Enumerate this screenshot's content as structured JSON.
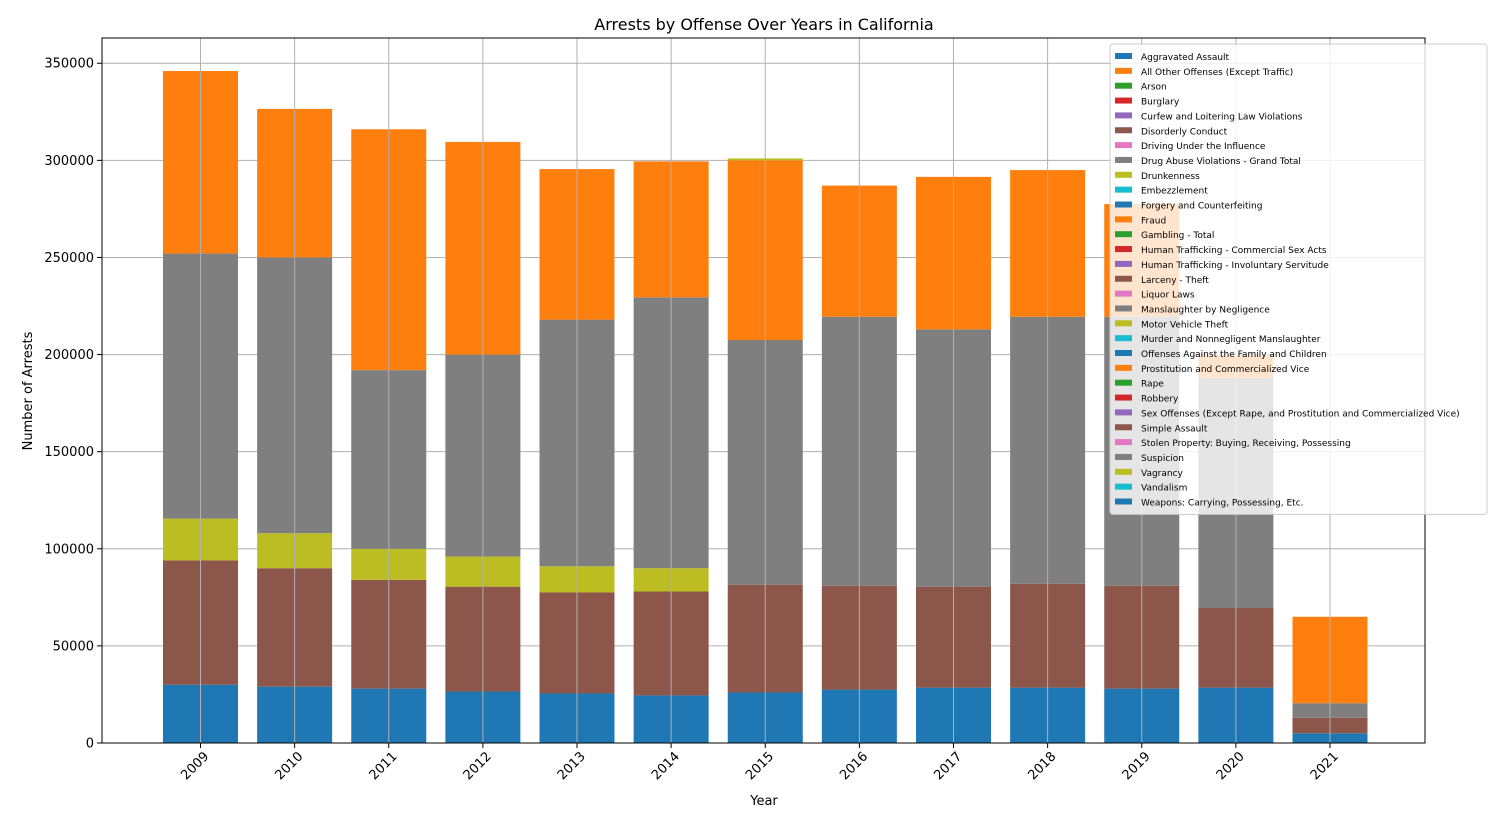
{
  "chart_data": {
    "type": "bar",
    "stacked": true,
    "title": "Arrests by Offense Over Years in California",
    "xlabel": "Year",
    "ylabel": "Number of Arrests",
    "categories": [
      "2009",
      "2010",
      "2011",
      "2012",
      "2013",
      "2014",
      "2015",
      "2016",
      "2017",
      "2018",
      "2019",
      "2020",
      "2021"
    ],
    "ylim": [
      0,
      363000
    ],
    "yticks": [
      0,
      50000,
      100000,
      150000,
      200000,
      250000,
      300000,
      350000
    ],
    "grid": true,
    "legend_position": "upper-right",
    "palette": [
      "#1f77b4",
      "#ff7f0e",
      "#2ca02c",
      "#d62728",
      "#9467bd",
      "#8c564b",
      "#e377c2",
      "#7f7f7f",
      "#bcbd22",
      "#17becf"
    ],
    "legend": [
      "Aggravated Assault",
      "All Other Offenses (Except Traffic)",
      "Arson",
      "Burglary",
      "Curfew and Loitering Law Violations",
      "Disorderly Conduct",
      "Driving Under the Influence",
      "Drug Abuse Violations - Grand Total",
      "Drunkenness",
      "Embezzlement",
      "Forgery and Counterfeiting",
      "Fraud",
      "Gambling - Total",
      "Human Trafficking - Commercial Sex Acts",
      "Human Trafficking - Involuntary Servitude",
      "Larceny - Theft",
      "Liquor Laws",
      "Manslaughter by Negligence",
      "Motor Vehicle Theft",
      "Murder and Nonnegligent Manslaughter",
      "Offenses Against the Family and Children",
      "Prostitution and Commercialized Vice",
      "Rape",
      "Robbery",
      "Sex Offenses (Except Rape, and Prostitution and Commercialized Vice)",
      "Simple Assault",
      "Stolen Property: Buying, Receiving, Possessing",
      "Suspicion",
      "Vagrancy",
      "Vandalism",
      "Weapons: Carrying, Possessing, Etc."
    ],
    "series": [
      {
        "color": "#1f77b4",
        "values": [
          30000,
          29000,
          28000,
          26500,
          25500,
          24500,
          26000,
          27500,
          28500,
          28500,
          28000,
          28500,
          5000
        ]
      },
      {
        "color": "#8c564b",
        "values": [
          64000,
          61000,
          56000,
          54000,
          52000,
          53500,
          55500,
          53500,
          52000,
          53500,
          53000,
          41000,
          8000
        ]
      },
      {
        "color": "#bcbd22",
        "values": [
          21500,
          18000,
          16000,
          15500,
          13500,
          12000,
          0,
          0,
          0,
          0,
          0,
          0,
          0
        ]
      },
      {
        "color": "#7f7f7f",
        "values": [
          136500,
          142000,
          92000,
          104000,
          127000,
          139500,
          126000,
          138500,
          132500,
          137500,
          138500,
          118500,
          7500
        ]
      },
      {
        "color": "#ff7f0e",
        "values": [
          94000,
          76500,
          124000,
          109500,
          77500,
          70000,
          92500,
          67500,
          78500,
          75500,
          58000,
          11500,
          44500
        ]
      },
      {
        "color": "#bcbd22",
        "values": [
          0,
          0,
          0,
          0,
          0,
          0,
          1000,
          0,
          0,
          0,
          0,
          0,
          0
        ]
      }
    ]
  }
}
